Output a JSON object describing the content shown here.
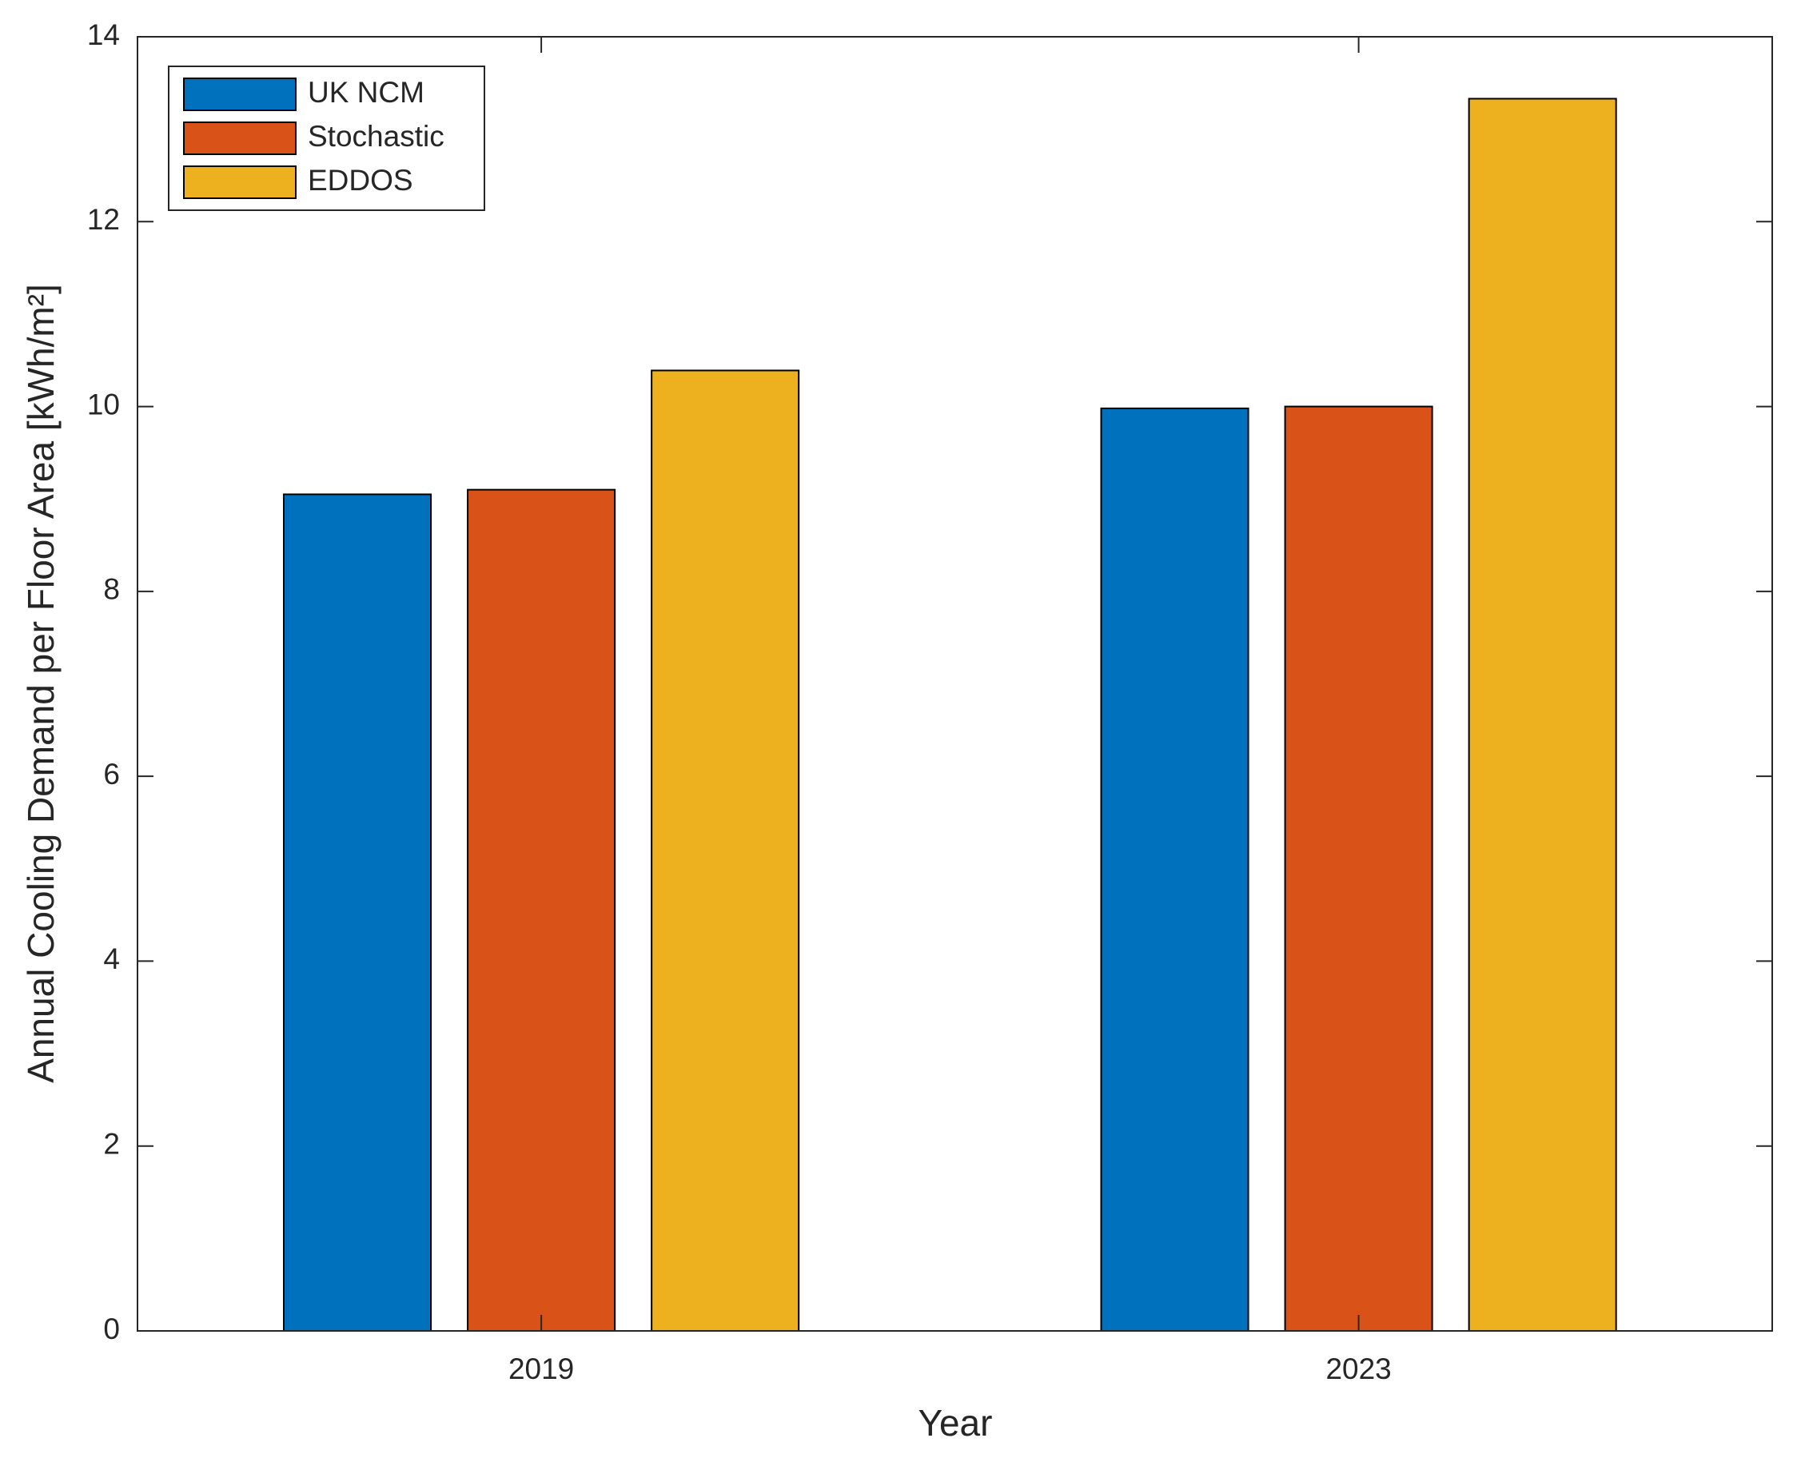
{
  "chart_data": {
    "type": "bar",
    "x_label": "Year",
    "y_label": "Annual Cooling Demand per Floor Area [kWh/m²]",
    "categories": [
      "2019",
      "2023"
    ],
    "series": [
      {
        "name": "UK NCM",
        "color": "#0072bd",
        "values": [
          9.05,
          9.98
        ]
      },
      {
        "name": "Stochastic",
        "color": "#d95319",
        "values": [
          9.1,
          10.0
        ]
      },
      {
        "name": "EDDOS",
        "color": "#edb120",
        "values": [
          10.39,
          13.33
        ]
      }
    ],
    "ylim": [
      0,
      14
    ],
    "yticks": [
      0,
      2,
      4,
      6,
      8,
      10,
      12,
      14
    ],
    "grid": false,
    "legend": "top-left"
  }
}
